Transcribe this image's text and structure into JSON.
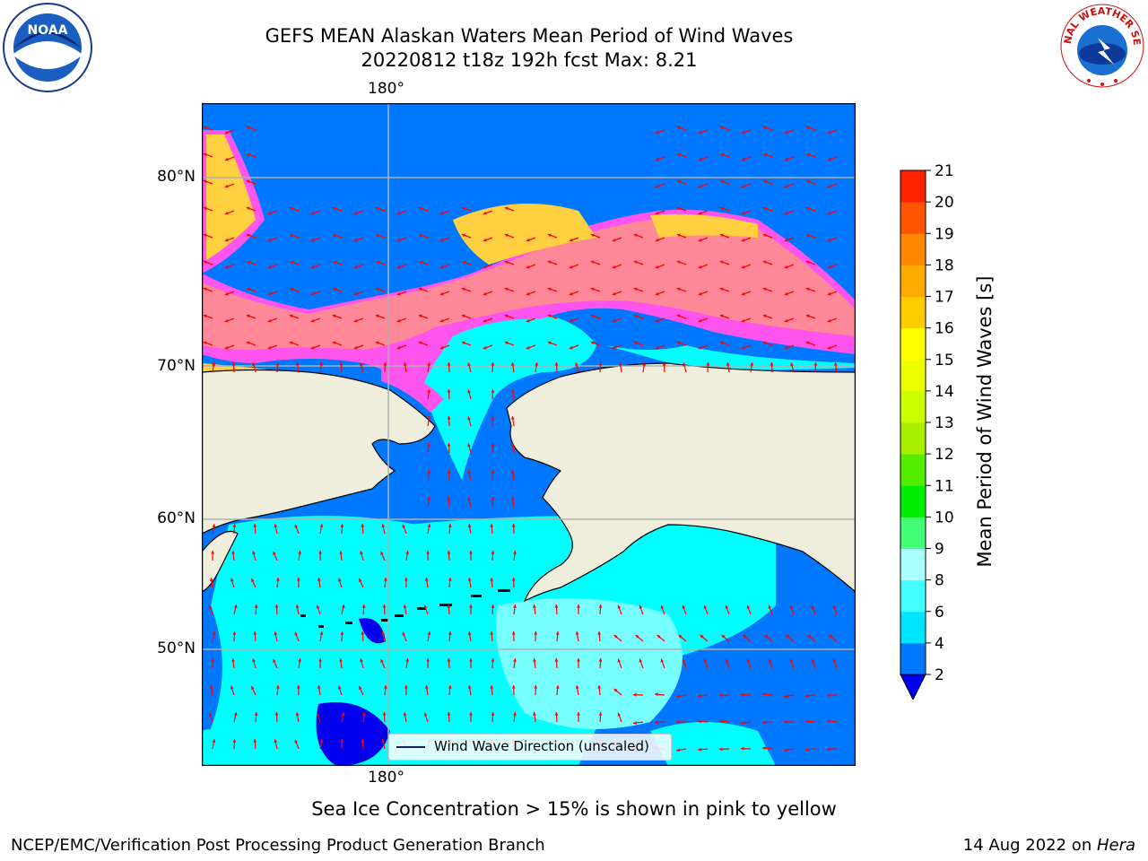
{
  "title": {
    "line1": "GEFS MEAN Alaskan Waters Mean Period of Wind Waves",
    "line2": "20220812 t18z 192h fcst   Max: 8.21"
  },
  "map": {
    "lon_labels": [
      "180°",
      "180°"
    ],
    "lat_labels": [
      "80°N",
      "70°N",
      "60°N",
      "50°N"
    ],
    "legend_text": "Wind Wave Direction (unscaled)",
    "colors": {
      "ocean_dark": "#0077ff",
      "ocean_light": "#00ffff",
      "ocean_pale": "#77ffff",
      "deep": "#0000ee",
      "land": "#efeedd",
      "ice_pink": "#ff55ee",
      "ice_salmon": "#ff8899",
      "ice_yellow": "#ffd040",
      "arrow": "#ff0000",
      "grid": "#b0b0b0"
    }
  },
  "colorbar": {
    "label": "Mean Period of Wind Waves [s]",
    "ticks": [
      "2",
      "4",
      "6",
      "8",
      "9",
      "10",
      "11",
      "12",
      "13",
      "14",
      "15",
      "16",
      "17",
      "18",
      "19",
      "20",
      "21"
    ],
    "colors": [
      "#0077ff",
      "#00e5ff",
      "#44ffff",
      "#aaffff",
      "#44ff77",
      "#00ee00",
      "#55ee00",
      "#aaee00",
      "#ccff00",
      "#eeff00",
      "#ffff00",
      "#ffcc00",
      "#ffaa00",
      "#ff8800",
      "#ff5500",
      "#ff2200",
      "#ff0000"
    ],
    "under_color": "#0000ee"
  },
  "note": "Sea Ice Concentration > 15% is shown in pink to yellow",
  "footer": {
    "left": "NCEP/EMC/Verification Post Processing Product Generation Branch",
    "right_date": "14 Aug 2022 on ",
    "right_machine": "Hera"
  },
  "logos": {
    "noaa_text": "NOAA",
    "nws_text": "NATIONAL WEATHER SERVICE"
  }
}
